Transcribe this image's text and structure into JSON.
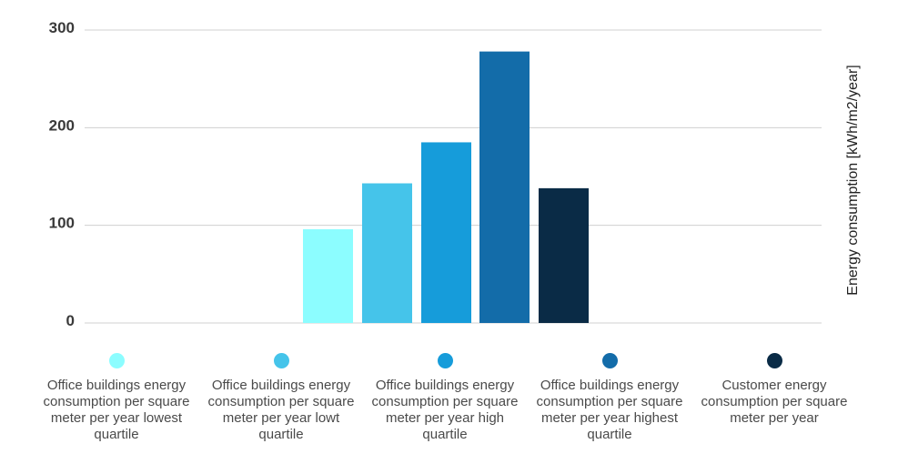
{
  "chart_data": {
    "type": "bar",
    "ylabel": "Energy consumption [kWh/m2/year]",
    "ylim": [
      0,
      300
    ],
    "yticks": [
      0,
      100,
      200,
      300
    ],
    "grid": true,
    "legend_position": "bottom",
    "categories": [
      "Office buildings energy consumption per square meter per year lowest quartile",
      "Office buildings energy consumption per square meter per year lowt quartile",
      "Office buildings energy consumption per square meter per year high quartile",
      "Office buildings energy consumption per square meter per year highest quartile",
      "Customer energy consumption per square meter per year"
    ],
    "values": [
      96,
      143,
      185,
      278,
      138
    ],
    "colors": [
      "#8cfdff",
      "#45c4ea",
      "#169cda",
      "#136ca9",
      "#0a2b46"
    ]
  }
}
